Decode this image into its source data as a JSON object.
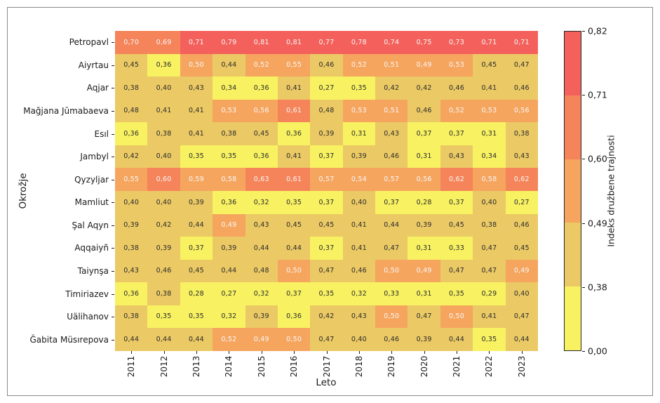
{
  "figure": {
    "xlabel": "Leto",
    "ylabel": "Okrožje",
    "background_color": "#ffffff",
    "frame_border_color": "#8a8a8a"
  },
  "chart_data": {
    "type": "heatmap",
    "title": "",
    "xlabel": "Leto",
    "ylabel": "Okrožje",
    "x": [
      "2011",
      "2012",
      "2013",
      "2014",
      "2015",
      "2016",
      "2017",
      "2018",
      "2019",
      "2020",
      "2021",
      "2022",
      "2023"
    ],
    "y": [
      "Petropavl",
      "Aiyrtau",
      "Aqjar",
      "Mağjana Jūmabaeva",
      "Esıl",
      "Jambyl",
      "Qyzyljar",
      "Mamliut",
      "Şal Aqyn",
      "Aqqaiyñ",
      "Taiynşa",
      "Timiriazev",
      "Uälihanov",
      "Ğabita Müsırepova"
    ],
    "values": [
      [
        "0,70",
        "0,69",
        "0,71",
        "0,79",
        "0,81",
        "0,81",
        "0,77",
        "0,78",
        "0,74",
        "0,75",
        "0,73",
        "0,71",
        "0,71"
      ],
      [
        "0,45",
        "0,36",
        "0,50",
        "0,44",
        "0,52",
        "0,55",
        "0,46",
        "0,52",
        "0,51",
        "0,49",
        "0,53",
        "0,45",
        "0,47"
      ],
      [
        "0,38",
        "0,40",
        "0,43",
        "0,34",
        "0,36",
        "0,41",
        "0,27",
        "0,35",
        "0,42",
        "0,42",
        "0,46",
        "0,41",
        "0,46"
      ],
      [
        "0,48",
        "0,41",
        "0,41",
        "0,53",
        "0,56",
        "0,61",
        "0,48",
        "0,53",
        "0,51",
        "0,46",
        "0,52",
        "0,53",
        "0,56"
      ],
      [
        "0,36",
        "0,38",
        "0,41",
        "0,38",
        "0,45",
        "0,36",
        "0,39",
        "0,31",
        "0,43",
        "0,37",
        "0,37",
        "0,31",
        "0,38"
      ],
      [
        "0,42",
        "0,40",
        "0,35",
        "0,35",
        "0,36",
        "0,41",
        "0,37",
        "0,39",
        "0,46",
        "0,31",
        "0,43",
        "0,34",
        "0,43"
      ],
      [
        "0,55",
        "0,60",
        "0,59",
        "0,58",
        "0,63",
        "0,61",
        "0,57",
        "0,54",
        "0,57",
        "0,56",
        "0,62",
        "0,58",
        "0,62"
      ],
      [
        "0,40",
        "0,40",
        "0,39",
        "0,36",
        "0,32",
        "0,35",
        "0,37",
        "0,40",
        "0,37",
        "0,28",
        "0,37",
        "0,40",
        "0,27"
      ],
      [
        "0,39",
        "0,42",
        "0,44",
        "0,49",
        "0,43",
        "0,45",
        "0,45",
        "0,41",
        "0,44",
        "0,39",
        "0,45",
        "0,38",
        "0,46"
      ],
      [
        "0,38",
        "0,39",
        "0,37",
        "0,39",
        "0,44",
        "0,44",
        "0,37",
        "0,41",
        "0,47",
        "0,31",
        "0,33",
        "0,47",
        "0,45"
      ],
      [
        "0,43",
        "0,46",
        "0,45",
        "0,44",
        "0,48",
        "0,50",
        "0,47",
        "0,46",
        "0,50",
        "0,49",
        "0,47",
        "0,47",
        "0,49"
      ],
      [
        "0,36",
        "0,38",
        "0,28",
        "0,27",
        "0,32",
        "0,37",
        "0,35",
        "0,32",
        "0,33",
        "0,31",
        "0,35",
        "0,29",
        "0,40"
      ],
      [
        "0,38",
        "0,35",
        "0,35",
        "0,32",
        "0,39",
        "0,36",
        "0,42",
        "0,43",
        "0,50",
        "0,47",
        "0,50",
        "0,41",
        "0,47"
      ],
      [
        "0,44",
        "0,44",
        "0,44",
        "0,52",
        "0,49",
        "0,50",
        "0,47",
        "0,40",
        "0,46",
        "0,39",
        "0,44",
        "0,35",
        "0,44"
      ]
    ],
    "value_range": [
      0.0,
      0.82
    ],
    "grid": false,
    "legend_position": "right",
    "text_dark": "#2b2b2b",
    "text_light": "#f7f7f7",
    "colorbar": {
      "label": "Indeks družbene trajnosti",
      "tick_labels": [
        "0,82",
        "0,71",
        "0,60",
        "0,49",
        "0,38",
        "0,00"
      ],
      "bins": [
        0.0,
        0.38,
        0.49,
        0.6,
        0.71,
        0.82
      ],
      "bin_colors": [
        "#f8f262",
        "#ebc965",
        "#f6a55f",
        "#f5845a",
        "#f4615c"
      ]
    }
  }
}
